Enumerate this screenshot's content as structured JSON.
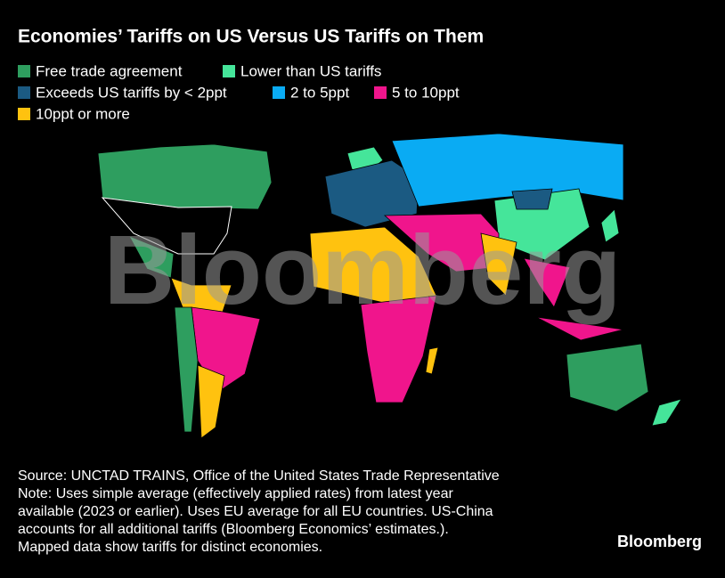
{
  "header": {
    "title": "Economies’ Tariffs on US Versus US Tariffs on Them"
  },
  "legend": {
    "items": [
      {
        "label": "Free trade agreement",
        "color": "#2e9e5f"
      },
      {
        "label": "Lower than US tariffs",
        "color": "#45e59a"
      },
      {
        "label": "Exceeds US tariffs by < 2ppt",
        "color": "#1b5a82"
      },
      {
        "label": "2 to 5ppt",
        "color": "#0aabf3"
      },
      {
        "label": "5 to 10ppt",
        "color": "#f0158c"
      },
      {
        "label": "10ppt or more",
        "color": "#ffc20f"
      }
    ]
  },
  "watermark": "Bloomberg",
  "footer": {
    "lines": [
      "Source: UNCTAD TRAINS, Office of the United States Trade Representative",
      "Note: Uses simple average (effectively applied rates) from latest year",
      "available (2023 or earlier). Uses EU average for all EU countries. US-China",
      "accounts for all additional tariffs (Bloomberg Economics’ estimates.).",
      "Mapped data show tariffs for distinct economies."
    ],
    "brand": "Bloomberg"
  }
}
